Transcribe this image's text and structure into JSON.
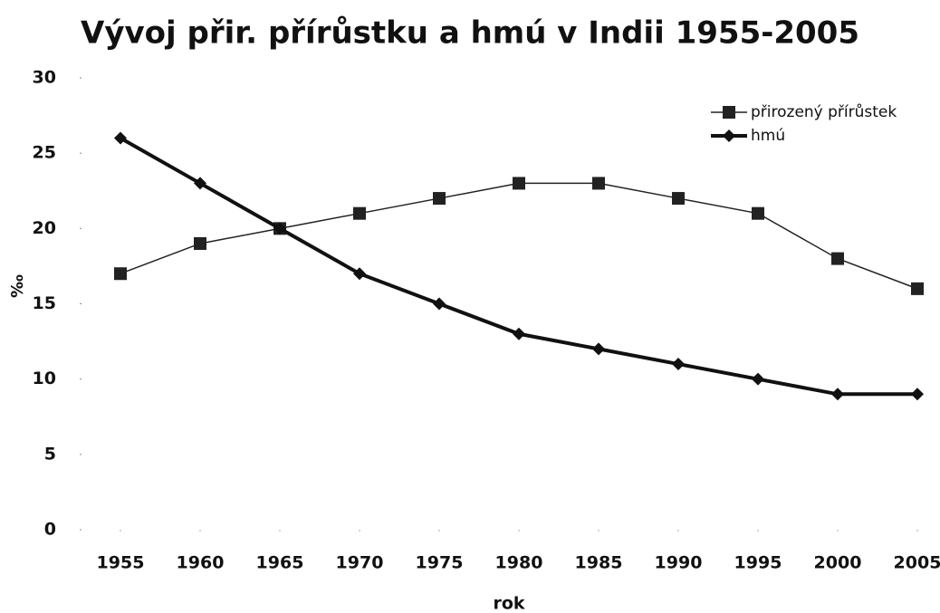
{
  "chart_data": {
    "type": "line",
    "title": "Vývoj přir. přírůstku a hmú v Indii 1955-2005",
    "x_label": "rok",
    "y_label": "‰",
    "x": [
      1955,
      1960,
      1965,
      1970,
      1975,
      1980,
      1985,
      1990,
      1995,
      2000,
      2005
    ],
    "xlim": [
      1955,
      2005
    ],
    "xticks": [
      1955,
      1960,
      1965,
      1970,
      1975,
      1980,
      1985,
      1990,
      1995,
      2000,
      2005
    ],
    "ylim": [
      0,
      30
    ],
    "yticks": [
      0,
      5,
      10,
      15,
      20,
      25,
      30
    ],
    "grid": false,
    "legend": "top-right",
    "series": [
      {
        "name": "přirozený přírůstek",
        "color": "#222222",
        "marker": "square",
        "values": [
          17,
          19,
          20,
          21,
          22,
          23,
          23,
          22,
          21,
          18,
          16
        ]
      },
      {
        "name": "hmú",
        "color": "#111111",
        "marker": "diamond",
        "values": [
          26,
          23,
          20,
          17,
          15,
          13,
          12,
          11,
          10,
          9,
          9
        ]
      }
    ]
  }
}
